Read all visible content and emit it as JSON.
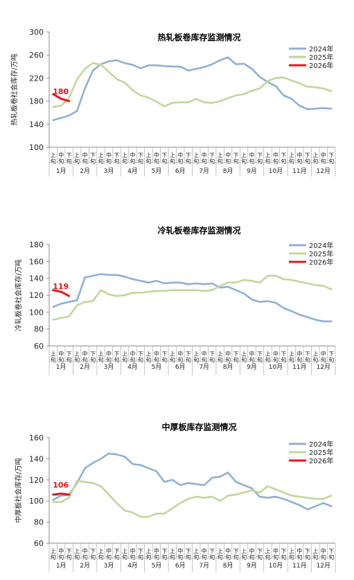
{
  "chart_data": [
    {
      "type": "line",
      "title": "热轧板卷库存监测情况",
      "ylabel": "热轧板卷社会库存/万吨",
      "ylim": [
        100,
        300
      ],
      "yticks": [
        100,
        140,
        180,
        220,
        260,
        300
      ],
      "x_ticks": [
        "上旬",
        "中旬",
        "下旬",
        "上旬",
        "中旬",
        "下旬",
        "上旬",
        "中旬",
        "下旬",
        "上旬",
        "中旬",
        "下旬",
        "上旬",
        "中旬",
        "下旬",
        "上旬",
        "中旬",
        "下旬",
        "上旬",
        "中旬",
        "下旬",
        "上旬",
        "中旬",
        "下旬",
        "上旬",
        "中旬",
        "下旬",
        "上旬",
        "中旬",
        "下旬",
        "上旬",
        "中旬",
        "下旬",
        "上旬",
        "中旬",
        "下旬"
      ],
      "months": [
        "1月",
        "2月",
        "3月",
        "4月",
        "5月",
        "6月",
        "7月",
        "8月",
        "9月",
        "10月",
        "11月",
        "12月"
      ],
      "legend_position": "top-right",
      "grid": false,
      "annotation": "180",
      "series": [
        {
          "name": "2024年",
          "color": "#8fb0d3",
          "values": [
            147,
            151,
            155,
            163,
            202,
            233,
            244,
            249,
            251,
            246,
            243,
            237,
            242,
            242,
            241,
            240,
            240,
            233,
            236,
            239,
            244,
            251,
            256,
            244,
            245,
            236,
            222,
            213,
            206,
            190,
            184,
            172,
            166,
            167,
            168,
            167
          ]
        },
        {
          "name": "2025年",
          "color": "#c2d69a",
          "values": [
            170,
            172,
            186,
            218,
            236,
            246,
            243,
            231,
            218,
            212,
            199,
            190,
            186,
            179,
            171,
            177,
            178,
            178,
            184,
            178,
            177,
            180,
            185,
            190,
            192,
            198,
            202,
            215,
            220,
            221,
            216,
            211,
            205,
            204,
            202,
            197
          ]
        },
        {
          "name": "2026年",
          "color": "#e8141b",
          "values": [
            192,
            184,
            180
          ]
        }
      ]
    },
    {
      "type": "line",
      "title": "冷轧板卷库存监测情况",
      "ylabel": "冷轧板卷社会库存/万吨",
      "ylim": [
        60,
        180
      ],
      "yticks": [
        60,
        80,
        100,
        120,
        140,
        160,
        180
      ],
      "x_ticks": [
        "上旬",
        "中旬",
        "下旬",
        "上旬",
        "中旬",
        "下旬",
        "上旬",
        "中旬",
        "下旬",
        "上旬",
        "中旬",
        "下旬",
        "上旬",
        "中旬",
        "下旬",
        "上旬",
        "中旬",
        "下旬",
        "上旬",
        "中旬",
        "下旬",
        "上旬",
        "中旬",
        "下旬",
        "上旬",
        "中旬",
        "下旬",
        "上旬",
        "中旬",
        "下旬",
        "上旬",
        "中旬",
        "下旬",
        "上旬",
        "中旬",
        "下旬"
      ],
      "months": [
        "1月",
        "2月",
        "3月",
        "4月",
        "5月",
        "6月",
        "7月",
        "8月",
        "9月",
        "10月",
        "11月",
        "12月"
      ],
      "legend_position": "top-right",
      "grid": false,
      "annotation": "119",
      "series": [
        {
          "name": "2024年",
          "color": "#8fb0d3",
          "values": [
            106,
            110,
            112,
            114,
            141,
            143,
            145,
            144,
            144,
            142,
            139,
            137,
            135,
            137,
            134,
            135,
            135,
            133,
            134,
            133,
            134,
            129,
            130,
            126,
            122,
            115,
            112,
            113,
            111,
            105,
            101,
            97,
            94,
            91,
            89,
            89
          ]
        },
        {
          "name": "2025年",
          "color": "#c2d69a",
          "values": [
            91,
            93,
            95,
            108,
            112,
            113,
            126,
            121,
            119,
            120,
            123,
            123,
            124,
            125,
            125,
            126,
            126,
            126,
            126,
            125,
            126,
            131,
            135,
            135,
            138,
            137,
            135,
            143,
            143,
            139,
            138,
            136,
            134,
            132,
            131,
            127
          ]
        },
        {
          "name": "2026年",
          "color": "#e8141b",
          "values": [
            126,
            124,
            119
          ]
        }
      ]
    },
    {
      "type": "line",
      "title": "中厚板库存监测情况",
      "ylabel": "中厚板社会库存/万吨",
      "ylim": [
        60,
        160
      ],
      "yticks": [
        60,
        80,
        100,
        120,
        140,
        160
      ],
      "x_ticks": [
        "上旬",
        "中旬",
        "下旬",
        "上旬",
        "中旬",
        "下旬",
        "上旬",
        "中旬",
        "下旬",
        "上旬",
        "中旬",
        "下旬",
        "上旬",
        "中旬",
        "下旬",
        "上旬",
        "中旬",
        "下旬",
        "上旬",
        "中旬",
        "下旬",
        "上旬",
        "中旬",
        "下旬",
        "上旬",
        "中旬",
        "下旬",
        "上旬",
        "中旬",
        "下旬",
        "上旬",
        "中旬",
        "下旬",
        "上旬",
        "中旬",
        "下旬"
      ],
      "months": [
        "1月",
        "2月",
        "3月",
        "4月",
        "5月",
        "6月",
        "7月",
        "8月",
        "9月",
        "10月",
        "11月",
        "12月"
      ],
      "legend_position": "top-right",
      "grid": false,
      "annotation": "106",
      "series": [
        {
          "name": "2024年",
          "color": "#8fb0d3",
          "values": [
            101,
            105,
            106,
            117,
            131,
            136,
            140,
            145,
            144,
            142,
            135,
            134,
            131,
            128,
            118,
            120,
            115,
            117,
            116,
            115,
            122,
            123,
            127,
            118,
            115,
            112,
            104,
            103,
            104,
            102,
            99,
            96,
            92,
            95,
            98,
            95
          ]
        },
        {
          "name": "2025年",
          "color": "#c2d69a",
          "values": [
            99,
            99,
            103,
            119,
            118,
            117,
            114,
            106,
            98,
            91,
            89,
            85,
            85,
            88,
            88,
            93,
            98,
            102,
            104,
            103,
            104,
            100,
            105,
            106,
            108,
            110,
            108,
            114,
            111,
            108,
            105,
            104,
            103,
            102,
            102,
            105
          ]
        },
        {
          "name": "2026年",
          "color": "#e8141b",
          "values": [
            106,
            107,
            106
          ]
        }
      ]
    }
  ]
}
